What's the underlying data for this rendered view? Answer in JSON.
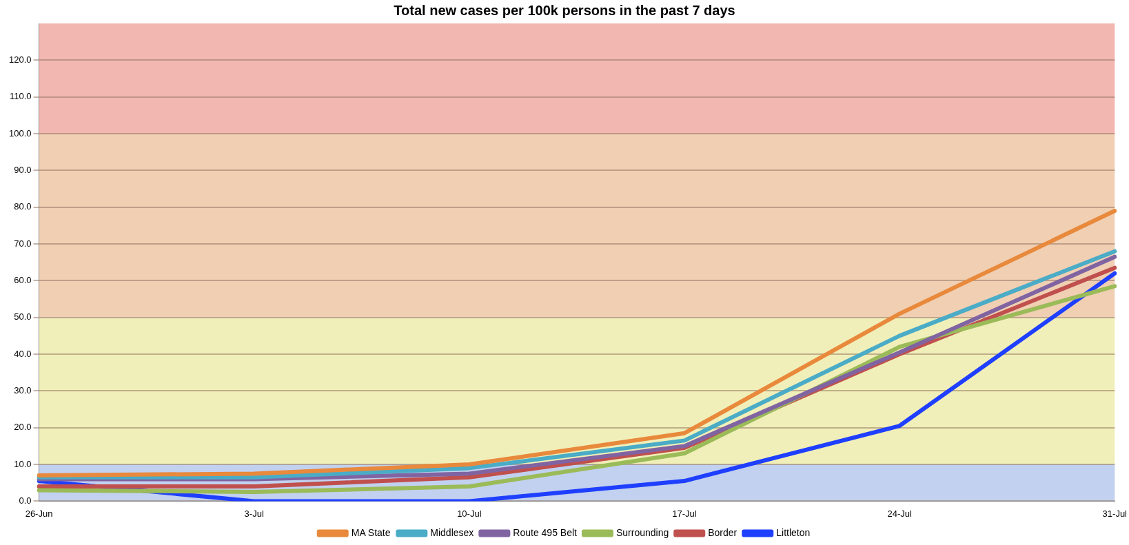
{
  "chart_data": {
    "type": "line",
    "title": "Total new cases per 100k persons in the past 7 days",
    "categories": [
      "26-Jun",
      "3-Jul",
      "10-Jul",
      "17-Jul",
      "24-Jul",
      "31-Jul"
    ],
    "series": [
      {
        "name": "MA State",
        "color": "#e8893c",
        "values": [
          7,
          7.5,
          10,
          18.5,
          51,
          79
        ]
      },
      {
        "name": "Middlesex",
        "color": "#4aacc6",
        "values": [
          6.5,
          6.5,
          9,
          16.5,
          45,
          68
        ]
      },
      {
        "name": "Route 495 Belt",
        "color": "#8064a2",
        "values": [
          6,
          6,
          7.5,
          15,
          40.5,
          66.5
        ]
      },
      {
        "name": "Surrounding",
        "color": "#9bbb59",
        "values": [
          3,
          2.5,
          4,
          13,
          42,
          58.5
        ]
      },
      {
        "name": "Border",
        "color": "#c0504d",
        "values": [
          4,
          4,
          6.5,
          14.5,
          40,
          63.5
        ]
      },
      {
        "name": "Littleton",
        "color": "#1f3fff",
        "values": [
          5.5,
          0,
          0,
          5.5,
          20.5,
          62
        ]
      }
    ],
    "bands": [
      {
        "axis": "y",
        "from": 0,
        "to": 10,
        "color": "#c2d1ef"
      },
      {
        "axis": "y",
        "from": 10,
        "to": 50,
        "color": "#f1efb9"
      },
      {
        "axis": "y",
        "from": 50,
        "to": 100,
        "color": "#f0cfb3"
      },
      {
        "axis": "y",
        "from": 100,
        "to": 130,
        "color": "#f3b7b2"
      }
    ],
    "ylim": [
      0,
      130
    ],
    "yticks": [
      {
        "value": 0,
        "label": "0.0"
      },
      {
        "value": 10,
        "label": "10.0"
      },
      {
        "value": 20,
        "label": "20.0"
      },
      {
        "value": 30,
        "label": "30.0"
      },
      {
        "value": 40,
        "label": "40.0"
      },
      {
        "value": 50,
        "label": "50.0"
      },
      {
        "value": 60,
        "label": "60.0"
      },
      {
        "value": 70,
        "label": "70.0"
      },
      {
        "value": 80,
        "label": "80.0"
      },
      {
        "value": 90,
        "label": "90.0"
      },
      {
        "value": 100,
        "label": "100.0"
      },
      {
        "value": 110,
        "label": "110.0"
      },
      {
        "value": 120,
        "label": "120.0"
      }
    ],
    "grid": "y",
    "legend": "bottom",
    "marker": "none",
    "line_style": "solid"
  }
}
